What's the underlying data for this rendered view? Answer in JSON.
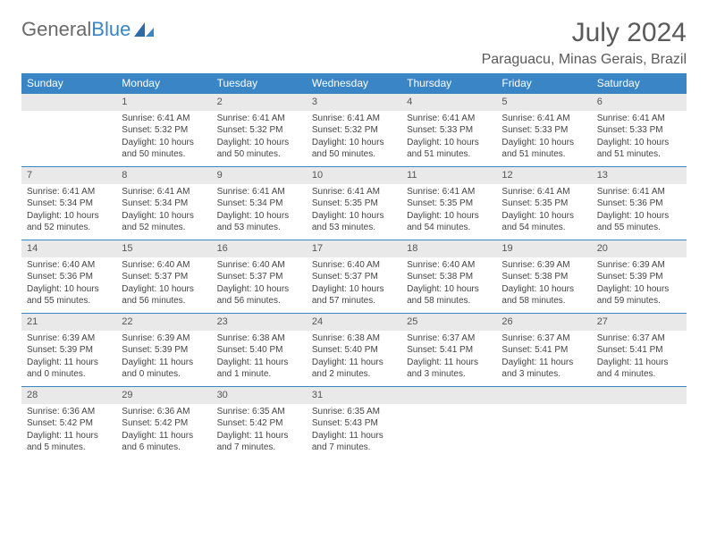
{
  "brand": {
    "name1": "General",
    "name2": "Blue"
  },
  "title": "July 2024",
  "location": "Paraguacu, Minas Gerais, Brazil",
  "colors": {
    "header_bg": "#3a85c6",
    "header_text": "#ffffff",
    "daybar_bg": "#e9e9e9",
    "daybar_border": "#3a85c6",
    "text": "#444444",
    "title_text": "#5a5a5a"
  },
  "weekdays": [
    "Sunday",
    "Monday",
    "Tuesday",
    "Wednesday",
    "Thursday",
    "Friday",
    "Saturday"
  ],
  "grid": [
    [
      null,
      {
        "n": "1",
        "sr": "6:41 AM",
        "ss": "5:32 PM",
        "dl": "10 hours and 50 minutes."
      },
      {
        "n": "2",
        "sr": "6:41 AM",
        "ss": "5:32 PM",
        "dl": "10 hours and 50 minutes."
      },
      {
        "n": "3",
        "sr": "6:41 AM",
        "ss": "5:32 PM",
        "dl": "10 hours and 50 minutes."
      },
      {
        "n": "4",
        "sr": "6:41 AM",
        "ss": "5:33 PM",
        "dl": "10 hours and 51 minutes."
      },
      {
        "n": "5",
        "sr": "6:41 AM",
        "ss": "5:33 PM",
        "dl": "10 hours and 51 minutes."
      },
      {
        "n": "6",
        "sr": "6:41 AM",
        "ss": "5:33 PM",
        "dl": "10 hours and 51 minutes."
      }
    ],
    [
      {
        "n": "7",
        "sr": "6:41 AM",
        "ss": "5:34 PM",
        "dl": "10 hours and 52 minutes."
      },
      {
        "n": "8",
        "sr": "6:41 AM",
        "ss": "5:34 PM",
        "dl": "10 hours and 52 minutes."
      },
      {
        "n": "9",
        "sr": "6:41 AM",
        "ss": "5:34 PM",
        "dl": "10 hours and 53 minutes."
      },
      {
        "n": "10",
        "sr": "6:41 AM",
        "ss": "5:35 PM",
        "dl": "10 hours and 53 minutes."
      },
      {
        "n": "11",
        "sr": "6:41 AM",
        "ss": "5:35 PM",
        "dl": "10 hours and 54 minutes."
      },
      {
        "n": "12",
        "sr": "6:41 AM",
        "ss": "5:35 PM",
        "dl": "10 hours and 54 minutes."
      },
      {
        "n": "13",
        "sr": "6:41 AM",
        "ss": "5:36 PM",
        "dl": "10 hours and 55 minutes."
      }
    ],
    [
      {
        "n": "14",
        "sr": "6:40 AM",
        "ss": "5:36 PM",
        "dl": "10 hours and 55 minutes."
      },
      {
        "n": "15",
        "sr": "6:40 AM",
        "ss": "5:37 PM",
        "dl": "10 hours and 56 minutes."
      },
      {
        "n": "16",
        "sr": "6:40 AM",
        "ss": "5:37 PM",
        "dl": "10 hours and 56 minutes."
      },
      {
        "n": "17",
        "sr": "6:40 AM",
        "ss": "5:37 PM",
        "dl": "10 hours and 57 minutes."
      },
      {
        "n": "18",
        "sr": "6:40 AM",
        "ss": "5:38 PM",
        "dl": "10 hours and 58 minutes."
      },
      {
        "n": "19",
        "sr": "6:39 AM",
        "ss": "5:38 PM",
        "dl": "10 hours and 58 minutes."
      },
      {
        "n": "20",
        "sr": "6:39 AM",
        "ss": "5:39 PM",
        "dl": "10 hours and 59 minutes."
      }
    ],
    [
      {
        "n": "21",
        "sr": "6:39 AM",
        "ss": "5:39 PM",
        "dl": "11 hours and 0 minutes."
      },
      {
        "n": "22",
        "sr": "6:39 AM",
        "ss": "5:39 PM",
        "dl": "11 hours and 0 minutes."
      },
      {
        "n": "23",
        "sr": "6:38 AM",
        "ss": "5:40 PM",
        "dl": "11 hours and 1 minute."
      },
      {
        "n": "24",
        "sr": "6:38 AM",
        "ss": "5:40 PM",
        "dl": "11 hours and 2 minutes."
      },
      {
        "n": "25",
        "sr": "6:37 AM",
        "ss": "5:41 PM",
        "dl": "11 hours and 3 minutes."
      },
      {
        "n": "26",
        "sr": "6:37 AM",
        "ss": "5:41 PM",
        "dl": "11 hours and 3 minutes."
      },
      {
        "n": "27",
        "sr": "6:37 AM",
        "ss": "5:41 PM",
        "dl": "11 hours and 4 minutes."
      }
    ],
    [
      {
        "n": "28",
        "sr": "6:36 AM",
        "ss": "5:42 PM",
        "dl": "11 hours and 5 minutes."
      },
      {
        "n": "29",
        "sr": "6:36 AM",
        "ss": "5:42 PM",
        "dl": "11 hours and 6 minutes."
      },
      {
        "n": "30",
        "sr": "6:35 AM",
        "ss": "5:42 PM",
        "dl": "11 hours and 7 minutes."
      },
      {
        "n": "31",
        "sr": "6:35 AM",
        "ss": "5:43 PM",
        "dl": "11 hours and 7 minutes."
      },
      null,
      null,
      null
    ]
  ],
  "labels": {
    "sunrise": "Sunrise:",
    "sunset": "Sunset:",
    "daylight": "Daylight:"
  }
}
